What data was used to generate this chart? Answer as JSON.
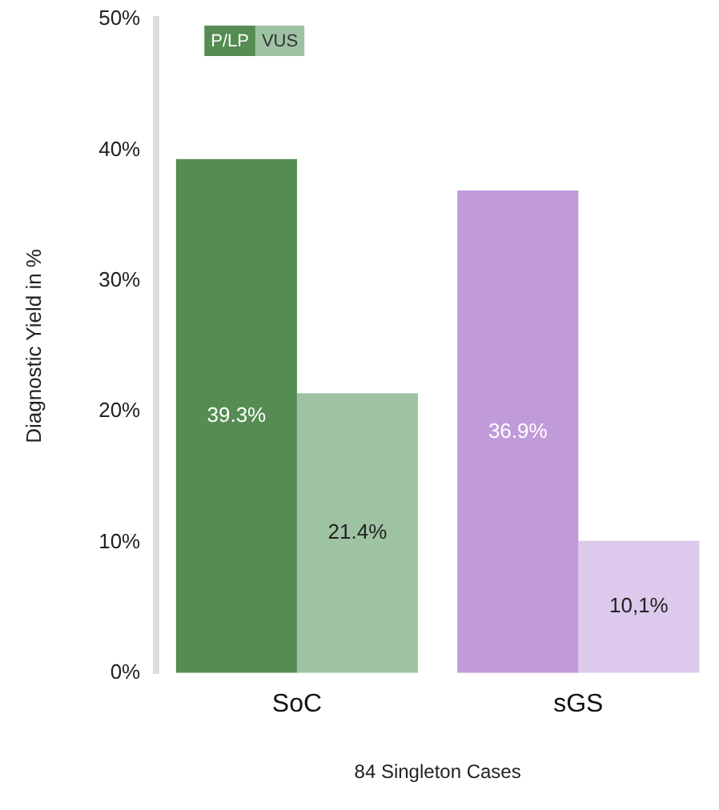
{
  "chart_data": {
    "type": "bar",
    "xlabel": "84 Singleton Cases",
    "ylabel": "Diagnostic Yield in %",
    "categories": [
      "SoC",
      "sGS"
    ],
    "series": [
      {
        "name": "P/LP",
        "colors": [
          "#548c52",
          "#c09ad9"
        ],
        "values": [
          39.3,
          36.9
        ],
        "value_labels": [
          "39.3%",
          "36.9%"
        ]
      },
      {
        "name": "VUS",
        "colors": [
          "#9ec3a2",
          "#ddc9ec"
        ],
        "values": [
          21.4,
          10.1
        ],
        "value_labels": [
          "21.4%",
          "10,1%"
        ]
      }
    ],
    "ylim": [
      0,
      50
    ],
    "yticks": [
      {
        "value": 0,
        "label": "0%"
      },
      {
        "value": 10,
        "label": "10%"
      },
      {
        "value": 20,
        "label": "20%"
      },
      {
        "value": 30,
        "label": "30%"
      },
      {
        "value": 40,
        "label": "40%"
      },
      {
        "value": 50,
        "label": "50%"
      }
    ],
    "grid": false,
    "legend": "top left"
  }
}
